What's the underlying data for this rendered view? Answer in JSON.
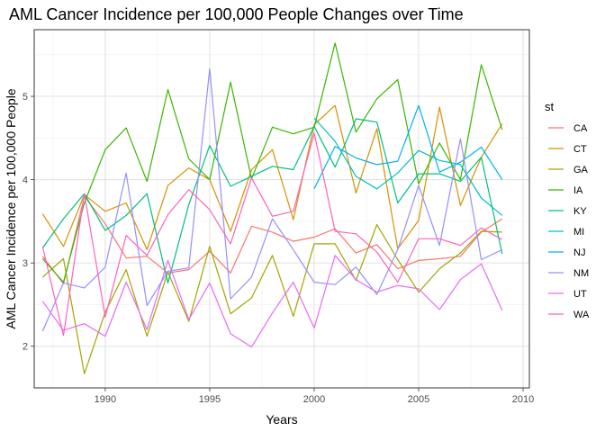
{
  "chart_data": {
    "type": "line",
    "title": "AML Cancer Incidence per 100,000 People Changes over Time",
    "xlabel": "Years",
    "ylabel": "AML Cancer Incidence per 100,000 People",
    "xlim": [
      1986.6,
      2010.3
    ],
    "ylim": [
      1.5,
      5.8
    ],
    "x_ticks": [
      1990,
      1995,
      2000,
      2005,
      2010
    ],
    "y_ticks": [
      2,
      3,
      4,
      5
    ],
    "grid": true,
    "legend_title": "st",
    "legend_position": "right",
    "x": [
      1987,
      1988,
      1989,
      1990,
      1991,
      1992,
      1993,
      1994,
      1995,
      1996,
      1997,
      1998,
      1999,
      2000,
      2001,
      2002,
      2003,
      2004,
      2005,
      2006,
      2007,
      2008,
      2009
    ],
    "series": [
      {
        "name": "CA",
        "color": "#F8766D",
        "values": [
          3.08,
          2.75,
          3.8,
          3.47,
          3.06,
          3.08,
          2.88,
          2.92,
          3.14,
          2.88,
          3.44,
          3.37,
          3.26,
          3.31,
          3.41,
          3.12,
          3.22,
          2.93,
          3.03,
          3.05,
          3.08,
          3.37,
          3.53
        ]
      },
      {
        "name": "CT",
        "color": "#D89000",
        "values": [
          3.59,
          3.2,
          3.82,
          3.62,
          3.72,
          3.16,
          3.93,
          4.14,
          4.0,
          3.38,
          4.12,
          4.36,
          3.52,
          4.66,
          4.89,
          3.84,
          4.61,
          3.17,
          3.51,
          4.87,
          3.69,
          4.27,
          4.67
        ]
      },
      {
        "name": "GA",
        "color": "#A3A500",
        "values": [
          2.83,
          3.05,
          1.67,
          2.41,
          2.92,
          2.12,
          2.89,
          2.3,
          3.2,
          2.39,
          2.58,
          3.09,
          2.36,
          3.23,
          3.23,
          2.79,
          3.46,
          3.04,
          2.65,
          2.93,
          3.12,
          3.38,
          3.37
        ]
      },
      {
        "name": "IA",
        "color": "#39B600",
        "values": [
          3.05,
          2.77,
          3.72,
          4.36,
          4.62,
          3.98,
          5.08,
          4.25,
          4.0,
          5.17,
          4.01,
          4.63,
          4.55,
          4.63,
          5.64,
          4.57,
          4.97,
          5.2,
          3.95,
          4.44,
          4.0,
          5.38,
          4.6
        ]
      },
      {
        "name": "KY",
        "color": "#00BF7D",
        "values": [
          3.18,
          3.53,
          3.83,
          3.39,
          3.57,
          3.83,
          2.76,
          3.7,
          4.41,
          3.92,
          4.04,
          4.16,
          4.12,
          4.64,
          4.15,
          4.73,
          4.69,
          3.72,
          4.07,
          4.07,
          3.98,
          4.27,
          3.11
        ]
      },
      {
        "name": "MI",
        "color": "#00BFC4",
        "values": [
          null,
          null,
          null,
          null,
          null,
          null,
          null,
          null,
          null,
          null,
          null,
          null,
          null,
          4.74,
          4.46,
          4.04,
          3.89,
          4.08,
          4.35,
          4.23,
          4.18,
          3.78,
          3.57
        ]
      },
      {
        "name": "NJ",
        "color": "#00B0F6",
        "values": [
          null,
          null,
          null,
          null,
          null,
          null,
          null,
          null,
          null,
          null,
          null,
          null,
          null,
          3.89,
          4.4,
          4.26,
          4.18,
          4.22,
          4.89,
          4.09,
          4.21,
          4.39,
          4.0
        ]
      },
      {
        "name": "NM",
        "color": "#9590FF",
        "values": [
          2.18,
          2.76,
          2.7,
          2.95,
          4.08,
          2.49,
          2.9,
          2.94,
          5.33,
          2.57,
          2.83,
          3.53,
          3.16,
          2.77,
          2.74,
          2.95,
          2.62,
          3.16,
          3.93,
          3.21,
          4.49,
          3.04,
          3.16
        ]
      },
      {
        "name": "UT",
        "color": "#E76BF3",
        "values": [
          2.54,
          2.19,
          2.27,
          2.12,
          2.77,
          2.2,
          3.03,
          2.32,
          2.76,
          2.15,
          1.99,
          2.4,
          2.77,
          2.22,
          3.09,
          2.8,
          2.65,
          2.73,
          2.69,
          2.44,
          2.8,
          2.99,
          2.43
        ]
      },
      {
        "name": "WA",
        "color": "#FF62BC",
        "values": [
          3.2,
          2.13,
          3.83,
          2.35,
          3.33,
          3.09,
          3.58,
          3.88,
          3.64,
          3.23,
          4.02,
          3.56,
          3.62,
          4.56,
          3.38,
          3.35,
          3.13,
          2.77,
          3.29,
          3.29,
          3.21,
          3.42,
          3.28
        ]
      }
    ]
  }
}
